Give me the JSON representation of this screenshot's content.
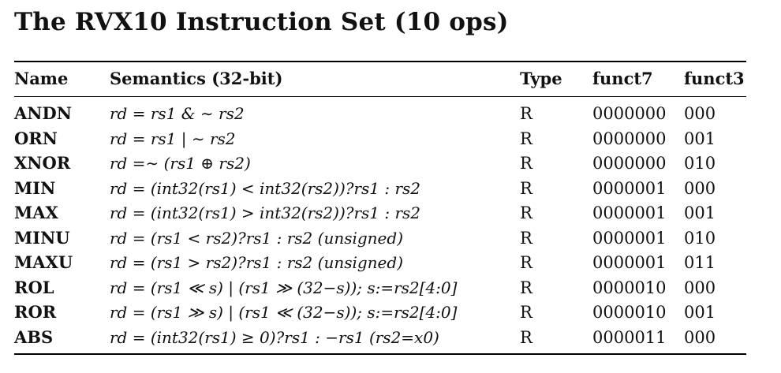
{
  "title": "The RVX10 Instruction Set (10 ops)",
  "table": {
    "headers": [
      "Name",
      "Semantics (32-bit)",
      "Type",
      "funct7",
      "funct3"
    ],
    "rows": [
      {
        "name": "ANDN",
        "semantics": "rd = rs1 & ∼ rs2",
        "type": "R",
        "funct7": "0000000",
        "funct3": "000"
      },
      {
        "name": "ORN",
        "semantics": "rd = rs1 | ∼ rs2",
        "type": "R",
        "funct7": "0000000",
        "funct3": "001"
      },
      {
        "name": "XNOR",
        "semantics": "rd =∼ (rs1 ⊕ rs2)",
        "type": "R",
        "funct7": "0000000",
        "funct3": "010"
      },
      {
        "name": "MIN",
        "semantics": "rd = (int32(rs1) < int32(rs2))?rs1 : rs2",
        "type": "R",
        "funct7": "0000001",
        "funct3": "000"
      },
      {
        "name": "MAX",
        "semantics": "rd = (int32(rs1) > int32(rs2))?rs1 : rs2",
        "type": "R",
        "funct7": "0000001",
        "funct3": "001"
      },
      {
        "name": "MINU",
        "semantics": "rd = (rs1 < rs2)?rs1 : rs2  (unsigned)",
        "type": "R",
        "funct7": "0000001",
        "funct3": "010"
      },
      {
        "name": "MAXU",
        "semantics": "rd = (rs1 > rs2)?rs1 : rs2  (unsigned)",
        "type": "R",
        "funct7": "0000001",
        "funct3": "011"
      },
      {
        "name": "ROL",
        "semantics": "rd = (rs1 ≪ s) | (rs1 ≫ (32−s)); s:=rs2[4:0]",
        "type": "R",
        "funct7": "0000010",
        "funct3": "000"
      },
      {
        "name": "ROR",
        "semantics": "rd = (rs1 ≫ s) | (rs1 ≪ (32−s)); s:=rs2[4:0]",
        "type": "R",
        "funct7": "0000010",
        "funct3": "001"
      },
      {
        "name": "ABS",
        "semantics": "rd = (int32(rs1) ≥ 0)?rs1 : −rs1 (rs2=x0)",
        "type": "R",
        "funct7": "0000011",
        "funct3": "000"
      }
    ]
  }
}
